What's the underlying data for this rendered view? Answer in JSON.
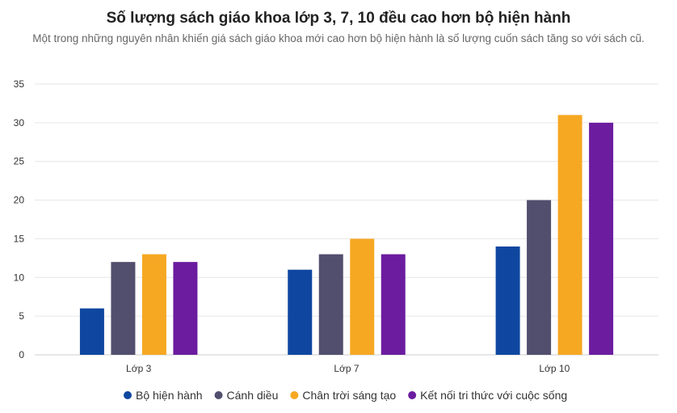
{
  "chart_data": {
    "type": "bar",
    "title": "Số lượng sách giáo khoa lớp 3, 7, 10 đều cao hơn bộ hiện hành",
    "subtitle": "Một trong những nguyên nhân khiến giá sách giáo khoa mới cao hơn bộ hiện hành là số lượng cuốn sách tăng so với sách cũ.",
    "categories": [
      "Lớp 3",
      "Lớp 7",
      "Lớp 10"
    ],
    "series": [
      {
        "name": "Bộ hiện hành",
        "color": "#0f47a0",
        "values": [
          6,
          11,
          14
        ]
      },
      {
        "name": "Cánh diều",
        "color": "#524e6e",
        "values": [
          12,
          13,
          20
        ]
      },
      {
        "name": "Chân trời sáng tạo",
        "color": "#f6a823",
        "values": [
          13,
          15,
          31
        ]
      },
      {
        "name": "Kết nối tri thức với cuộc sống",
        "color": "#6b1c9f",
        "values": [
          12,
          13,
          30
        ]
      }
    ],
    "ylim": [
      0,
      35
    ],
    "yticks": [
      "0",
      "5",
      "10",
      "15",
      "20",
      "25",
      "30",
      "35"
    ],
    "grid": true,
    "legend": "bottom"
  }
}
